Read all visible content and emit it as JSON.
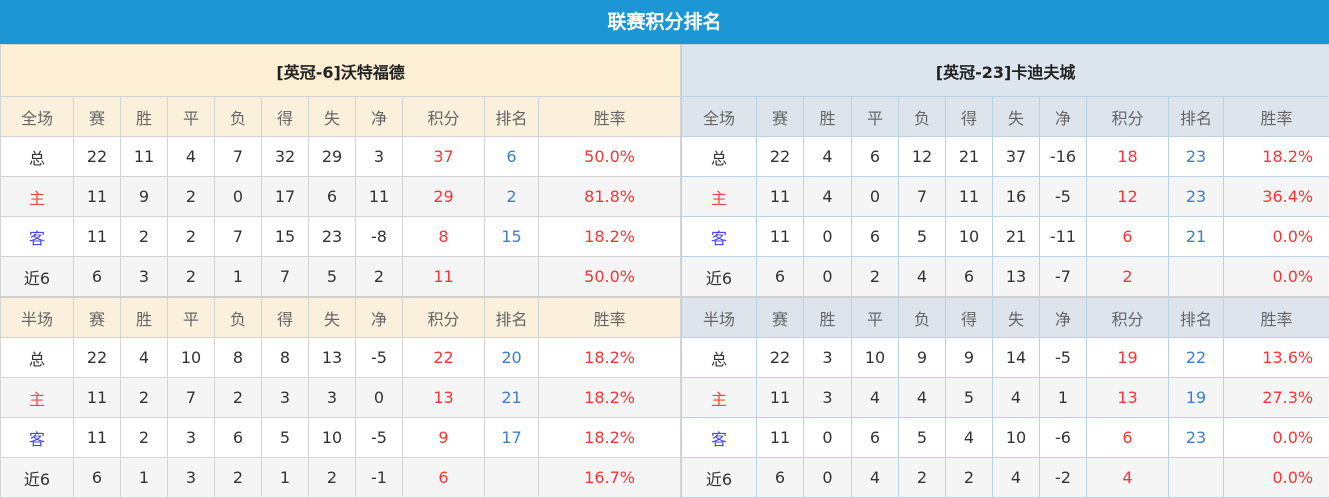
{
  "title": "联赛积分排名",
  "columns": [
    "赛",
    "胜",
    "平",
    "负",
    "得",
    "失",
    "净",
    "积分",
    "排名",
    "胜率"
  ],
  "teams": [
    {
      "name": "[英冠-6]沃特福德",
      "full": {
        "label": "全场",
        "rows": [
          [
            "总",
            "22",
            "11",
            "4",
            "7",
            "32",
            "29",
            "3",
            "37",
            "6",
            "50.0%"
          ],
          [
            "主",
            "11",
            "9",
            "2",
            "0",
            "17",
            "6",
            "11",
            "29",
            "2",
            "81.8%"
          ],
          [
            "客",
            "11",
            "2",
            "2",
            "7",
            "15",
            "23",
            "-8",
            "8",
            "15",
            "18.2%"
          ],
          [
            "近6",
            "6",
            "3",
            "2",
            "1",
            "7",
            "5",
            "2",
            "11",
            "",
            "50.0%"
          ]
        ]
      },
      "half": {
        "label": "半场",
        "rows": [
          [
            "总",
            "22",
            "4",
            "10",
            "8",
            "8",
            "13",
            "-5",
            "22",
            "20",
            "18.2%"
          ],
          [
            "主",
            "11",
            "2",
            "7",
            "2",
            "3",
            "3",
            "0",
            "13",
            "21",
            "18.2%"
          ],
          [
            "客",
            "11",
            "2",
            "3",
            "6",
            "5",
            "10",
            "-5",
            "9",
            "17",
            "18.2%"
          ],
          [
            "近6",
            "6",
            "1",
            "3",
            "2",
            "1",
            "2",
            "-1",
            "6",
            "",
            "16.7%"
          ]
        ]
      }
    },
    {
      "name": "[英冠-23]卡迪夫城",
      "full": {
        "label": "全场",
        "rows": [
          [
            "总",
            "22",
            "4",
            "6",
            "12",
            "21",
            "37",
            "-16",
            "18",
            "23",
            "18.2%"
          ],
          [
            "主",
            "11",
            "4",
            "0",
            "7",
            "11",
            "16",
            "-5",
            "12",
            "23",
            "36.4%"
          ],
          [
            "客",
            "11",
            "0",
            "6",
            "5",
            "10",
            "21",
            "-11",
            "6",
            "21",
            "0.0%"
          ],
          [
            "近6",
            "6",
            "0",
            "2",
            "4",
            "6",
            "13",
            "-7",
            "2",
            "",
            "0.0%"
          ]
        ]
      },
      "half": {
        "label": "半场",
        "rows": [
          [
            "总",
            "22",
            "3",
            "10",
            "9",
            "9",
            "14",
            "-5",
            "19",
            "22",
            "13.6%"
          ],
          [
            "主",
            "11",
            "3",
            "4",
            "4",
            "5",
            "4",
            "1",
            "13",
            "19",
            "27.3%"
          ],
          [
            "客",
            "11",
            "0",
            "6",
            "5",
            "4",
            "10",
            "-6",
            "6",
            "23",
            "0.0%"
          ],
          [
            "近6",
            "6",
            "0",
            "4",
            "2",
            "2",
            "4",
            "-2",
            "4",
            "",
            "0.0%"
          ]
        ]
      }
    }
  ],
  "colors": {
    "header": "#1c96d4",
    "points": "#ff3333",
    "rank": "#3a7fd0",
    "home": "#ff4444",
    "away": "#4444ff"
  }
}
